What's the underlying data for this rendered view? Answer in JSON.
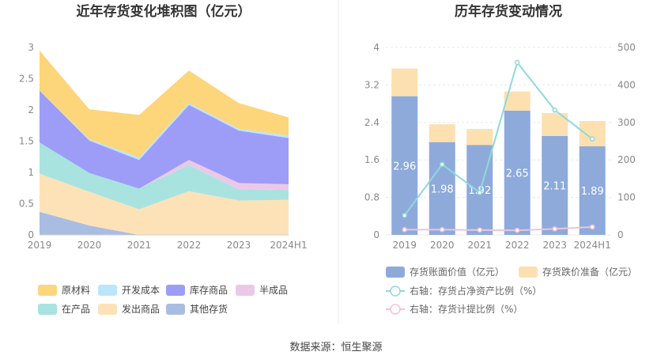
{
  "source": "数据来源：恒生聚源",
  "chart_data": [
    {
      "type": "area",
      "stacked": true,
      "title": "近年存货变化堆积图（亿元）",
      "categories": [
        "2019",
        "2020",
        "2021",
        "2022",
        "2023",
        "2024H1"
      ],
      "ylim": [
        0,
        3
      ],
      "yticks": [
        "0",
        "0.5",
        "1",
        "1.5",
        "2",
        "2.5",
        "3"
      ],
      "grid": false,
      "legend_position": "bottom",
      "series": [
        {
          "name": "其他存货",
          "color": "#a9bde3",
          "values": [
            0.37,
            0.15,
            0.0,
            0.0,
            0.0,
            0.0
          ]
        },
        {
          "name": "发出商品",
          "color": "#fde2b8",
          "values": [
            0.61,
            0.54,
            0.41,
            0.7,
            0.55,
            0.56
          ]
        },
        {
          "name": "在产品",
          "color": "#a8e3e0",
          "values": [
            0.5,
            0.3,
            0.33,
            0.42,
            0.18,
            0.16
          ]
        },
        {
          "name": "半成品",
          "color": "#ecc8e8",
          "values": [
            0.0,
            0.0,
            0.0,
            0.08,
            0.1,
            0.09
          ]
        },
        {
          "name": "库存商品",
          "color": "#9d9df7",
          "values": [
            0.83,
            0.52,
            0.46,
            0.88,
            0.84,
            0.74
          ]
        },
        {
          "name": "开发成本",
          "color": "#b9e6fb",
          "values": [
            0.0,
            0.02,
            0.04,
            0.03,
            0.03,
            0.04
          ]
        },
        {
          "name": "原材料",
          "color": "#fdd57a",
          "values": [
            0.64,
            0.48,
            0.68,
            0.52,
            0.41,
            0.29
          ]
        }
      ]
    },
    {
      "type": "bar",
      "title": "历年存货变动情况",
      "categories": [
        "2019",
        "2020",
        "2021",
        "2022",
        "2023",
        "2024H1"
      ],
      "ylim": [
        0,
        4
      ],
      "yticks": [
        "0",
        "0.8",
        "1.6",
        "2.4",
        "3.2",
        "4"
      ],
      "y2lim": [
        0,
        500
      ],
      "y2ticks": [
        "0",
        "100",
        "200",
        "300",
        "400",
        "500"
      ],
      "legend_position": "bottom",
      "series": [
        {
          "name": "存货账面价值（亿元）",
          "axis": "left",
          "kind": "bar",
          "color": "#8eaadb",
          "values": [
            2.96,
            1.98,
            1.92,
            2.65,
            2.11,
            1.89
          ]
        },
        {
          "name": "存货跌价准备（亿元）",
          "axis": "left",
          "kind": "bar",
          "color": "#fde0b0",
          "values": [
            0.59,
            0.38,
            0.34,
            0.41,
            0.49,
            0.54
          ]
        },
        {
          "name": "右轴：存货占净资产比例（%）",
          "axis": "right",
          "kind": "line",
          "color": "#8fd9dc",
          "values": [
            52,
            188,
            113,
            460,
            333,
            256
          ]
        },
        {
          "name": "右轴：存货计提比例（%）",
          "axis": "right",
          "kind": "line",
          "color": "#efc2df",
          "values": [
            14,
            14,
            13,
            12,
            16,
            21
          ]
        }
      ],
      "data_labels": [
        "2.96",
        "1.98",
        "1.92",
        "2.65",
        "2.11",
        "1.89"
      ]
    }
  ]
}
